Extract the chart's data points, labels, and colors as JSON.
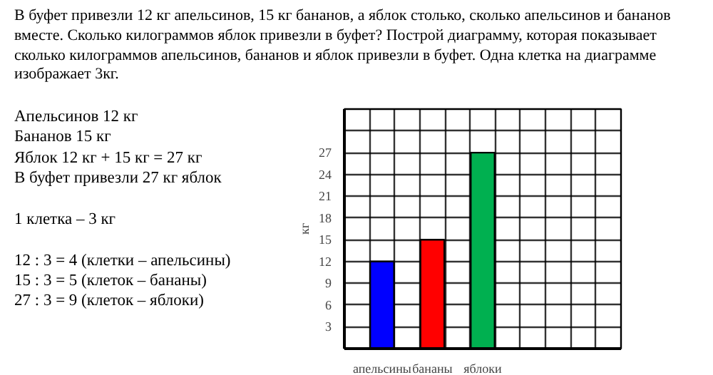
{
  "chart_data": {
    "type": "bar",
    "annotations": [
      "В буфет привезли 12 кг апельсинов, 15 кг бананов, а яблок столько, сколько апельсинов и бананов вместе. Сколько килограммов яблок привезли в буфет? Построй диаграмму, которая показывает сколько килограммов апельсинов, бананов и яблок привезли в буфет. Одна клетка на диаграмме изображает 3кг.",
      "Апельсинов 12 кг\nБананов 15 кг\nЯблок 12 кг + 15 кг = 27 кг\nВ буфет привезли 27 кг яблок",
      "1 клетка – 3 кг",
      "12 : 3 = 4 (клетки – апельсины)\n15 : 3 = 5 (клеток – бананы)\n27 : 3 = 9 (клеток – яблоки)"
    ],
    "ylabel": "кг",
    "categories": [
      null,
      "апельсины",
      null,
      "бананы",
      null,
      "яблоки",
      null,
      null,
      null,
      null,
      null
    ],
    "values": [
      null,
      12,
      null,
      15,
      null,
      27,
      null,
      null,
      null,
      null,
      null
    ],
    "colors": [
      "#000000",
      "#0000ff",
      "#000000",
      "#ff0000",
      "#000000",
      "#00b050",
      "#000000",
      "#000000",
      "#000000",
      "#000000",
      "#000000"
    ],
    "ylim": [
      0,
      33
    ],
    "yticks": [
      {
        "value": 0,
        "label": null
      },
      3,
      6,
      9,
      12,
      15,
      18,
      21,
      24,
      27,
      {
        "value": 30,
        "label": null
      },
      {
        "value": 33,
        "label": null
      }
    ],
    "grid": true
  }
}
